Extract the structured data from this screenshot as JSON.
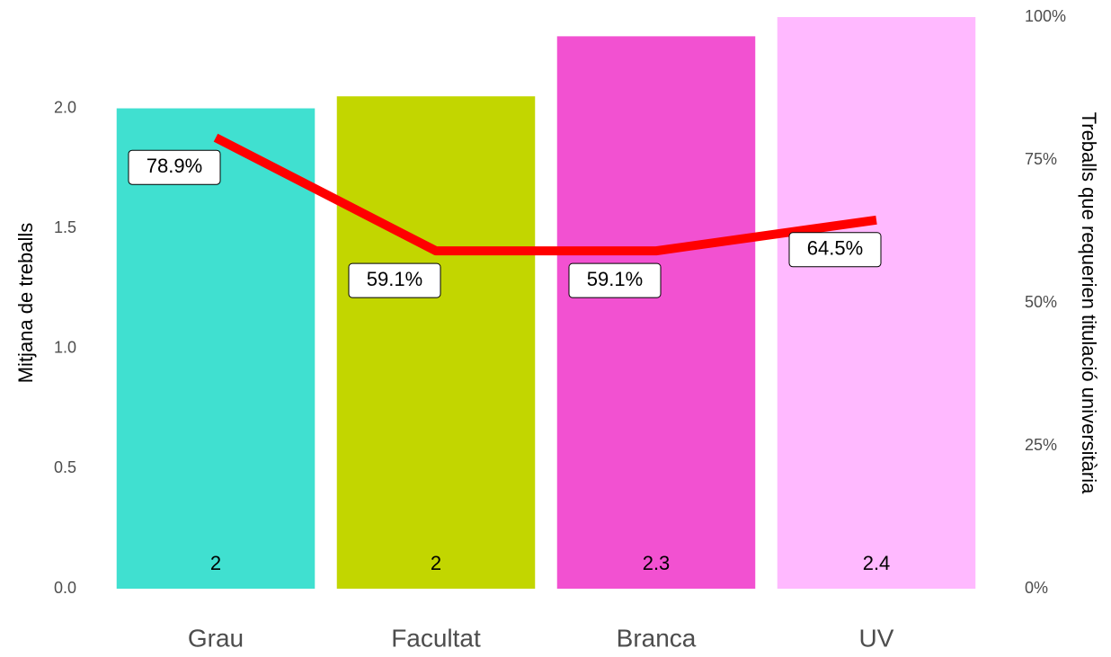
{
  "chart_data": {
    "type": "bar_line",
    "categories": [
      "Grau",
      "Facultat",
      "Branca",
      "UV"
    ],
    "values": [
      2.0,
      2.05,
      2.3,
      2.38
    ],
    "value_labels": [
      "2",
      "2",
      "2.3",
      "2.4"
    ],
    "colors": [
      "#40e0d0",
      "#c2d600",
      "#f251d1",
      "#ffb9ff"
    ],
    "ylabel": "Mitjana de treballs",
    "ylim": [
      0,
      2.38
    ],
    "yticks": [
      {
        "value": 0,
        "label": "0.0"
      },
      0.5,
      {
        "value": 1,
        "label": "1.0"
      },
      1.5,
      {
        "value": 2,
        "label": "2.0"
      }
    ],
    "series": [
      {
        "name": "Treballs que requerien titulació universitària",
        "color": "#ff0000",
        "axis": "y2",
        "values": [
          78.9,
          59.1,
          59.1,
          64.5
        ],
        "value_labels": [
          "78.9%",
          "59.1%",
          "59.1%",
          "64.5%"
        ]
      }
    ],
    "y2label": "Treballs que requerien titulació universitària",
    "y2lim": [
      0,
      100
    ],
    "y2ticks": [
      {
        "value": 0,
        "label": "0%"
      },
      {
        "value": 25,
        "label": "25%"
      },
      {
        "value": 50,
        "label": "50%"
      },
      {
        "value": 75,
        "label": "75%"
      },
      {
        "value": 100,
        "label": "100%"
      }
    ]
  }
}
